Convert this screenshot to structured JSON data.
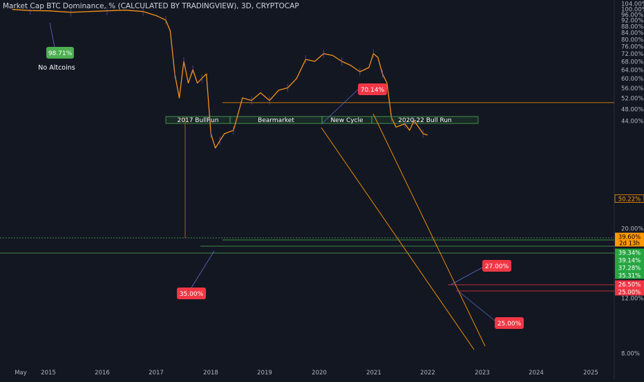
{
  "chart_data": {
    "type": "line",
    "title": "Market Cap BTC Dominance, % (CALCULATED BY TRADINGVIEW), 3D, CRYPTOCAP",
    "ylim": [
      8,
      104
    ],
    "y_scale": "log",
    "y_ticks": [
      "104.00%",
      "100.00%",
      "96.00%",
      "92.00%",
      "88.00%",
      "84.00%",
      "80.00%",
      "76.00%",
      "72.00%",
      "68.00%",
      "64.00%",
      "60.00%",
      "56.00%",
      "52.00%",
      "48.00%",
      "44.00%",
      "20.00%",
      "16.00%",
      "12.00%",
      "8.00%"
    ],
    "x_ticks": [
      "May",
      "2015",
      "2016",
      "2017",
      "2018",
      "2019",
      "2020",
      "2021",
      "2022",
      "2023",
      "2024",
      "2025"
    ],
    "series": [
      {
        "color": "#f7931a",
        "x": [
          "2014-05",
          "2014-09",
          "2015-01",
          "2015-06",
          "2015-10",
          "2016-02",
          "2016-06",
          "2016-10",
          "2017-01",
          "2017-03",
          "2017-04",
          "2017-05",
          "2017-06",
          "2017-07",
          "2017-08",
          "2017-09",
          "2017-10",
          "2017-11",
          "2017-12",
          "2018-01",
          "2018-02",
          "2018-03",
          "2018-04",
          "2018-06",
          "2018-08",
          "2018-10",
          "2018-12",
          "2019-02",
          "2019-04",
          "2019-06",
          "2019-08",
          "2019-10",
          "2019-12",
          "2020-02",
          "2020-04",
          "2020-06",
          "2020-08",
          "2020-10",
          "2020-12",
          "2021-01",
          "2021-02",
          "2021-03",
          "2021-04",
          "2021-05",
          "2021-06",
          "2021-08",
          "2021-09",
          "2021-10",
          "2021-11",
          "2021-12",
          "2022-01"
        ],
        "values": [
          99.5,
          98.7,
          98.5,
          97.5,
          98,
          98.5,
          99,
          98,
          95,
          92,
          85,
          62,
          52,
          68,
          58,
          64,
          58,
          60,
          62,
          40,
          36,
          38,
          40,
          41,
          52,
          51,
          54,
          51,
          55,
          56,
          60,
          69,
          68,
          72,
          71,
          68,
          66,
          63,
          65,
          72,
          70,
          62,
          58,
          45,
          42,
          43,
          41,
          44,
          42,
          40,
          39.6
        ]
      }
    ],
    "annotations": {
      "zones": [
        "2017 BullRun",
        "Bearmarket",
        "New Cycle",
        "2020-22 Bull Run"
      ],
      "callouts": [
        {
          "text": "98.71%",
          "color": "#4caf50"
        },
        {
          "text": "70.14%",
          "color": "#f23645"
        },
        {
          "text": "35.00%",
          "color": "#f23645"
        },
        {
          "text": "27.00%",
          "color": "#f23645"
        },
        {
          "text": "25.00%",
          "color": "#f23645"
        }
      ],
      "note": "No Altcoins",
      "price_tags": [
        {
          "text": "50.22%",
          "color": "#ff9800",
          "bg": "#131722"
        },
        {
          "text": "39.60%",
          "color": "#000000",
          "bg": "#ff9800"
        },
        {
          "text": "2d 13h",
          "color": "#000000",
          "bg": "#ff9800"
        },
        {
          "text": "39.34%",
          "color": "#ffffff",
          "bg": "#26a641"
        },
        {
          "text": "39.14%",
          "color": "#ffffff",
          "bg": "#26a641"
        },
        {
          "text": "37.28%",
          "color": "#ffffff",
          "bg": "#26a641"
        },
        {
          "text": "35.31%",
          "color": "#ffffff",
          "bg": "#26a641"
        },
        {
          "text": "26.50%",
          "color": "#ffffff",
          "bg": "#f23645"
        },
        {
          "text": "25.00%",
          "color": "#ffffff",
          "bg": "#f23645"
        }
      ]
    },
    "grid": false,
    "legend": "none"
  }
}
